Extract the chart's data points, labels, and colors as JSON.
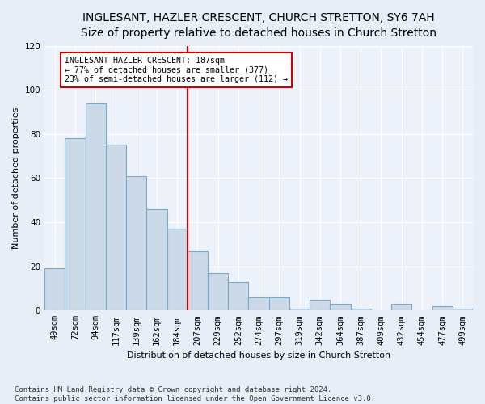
{
  "title": "INGLESANT, HAZLER CRESCENT, CHURCH STRETTON, SY6 7AH",
  "subtitle": "Size of property relative to detached houses in Church Stretton",
  "xlabel": "Distribution of detached houses by size in Church Stretton",
  "ylabel": "Number of detached properties",
  "categories": [
    "49sqm",
    "72sqm",
    "94sqm",
    "117sqm",
    "139sqm",
    "162sqm",
    "184sqm",
    "207sqm",
    "229sqm",
    "252sqm",
    "274sqm",
    "297sqm",
    "319sqm",
    "342sqm",
    "364sqm",
    "387sqm",
    "409sqm",
    "432sqm",
    "454sqm",
    "477sqm",
    "499sqm"
  ],
  "values": [
    19,
    78,
    94,
    75,
    61,
    46,
    37,
    27,
    17,
    13,
    6,
    6,
    1,
    5,
    3,
    1,
    0,
    3,
    0,
    2,
    1
  ],
  "bar_color": "#ccd9e8",
  "bar_edge_color": "#7aaac8",
  "marker_bar_index": 6,
  "marker_line_color": "#cc0000",
  "annotation_line1": "INGLESANT HAZLER CRESCENT: 187sqm",
  "annotation_line2": "← 77% of detached houses are smaller (377)",
  "annotation_line3": "23% of semi-detached houses are larger (112) →",
  "annotation_box_edge_color": "#cc0000",
  "annotation_fill_color": "#ffffff",
  "ylim": [
    0,
    120
  ],
  "yticks": [
    0,
    20,
    40,
    60,
    80,
    100,
    120
  ],
  "footer_line1": "Contains HM Land Registry data © Crown copyright and database right 2024.",
  "footer_line2": "Contains public sector information licensed under the Open Government Licence v3.0.",
  "bg_color": "#e8eef8",
  "plot_bg_color": "#edf2fa",
  "title_fontsize": 10,
  "subtitle_fontsize": 9,
  "ylabel_fontsize": 8,
  "xlabel_fontsize": 8,
  "tick_fontsize": 7.5,
  "footer_fontsize": 6.5
}
